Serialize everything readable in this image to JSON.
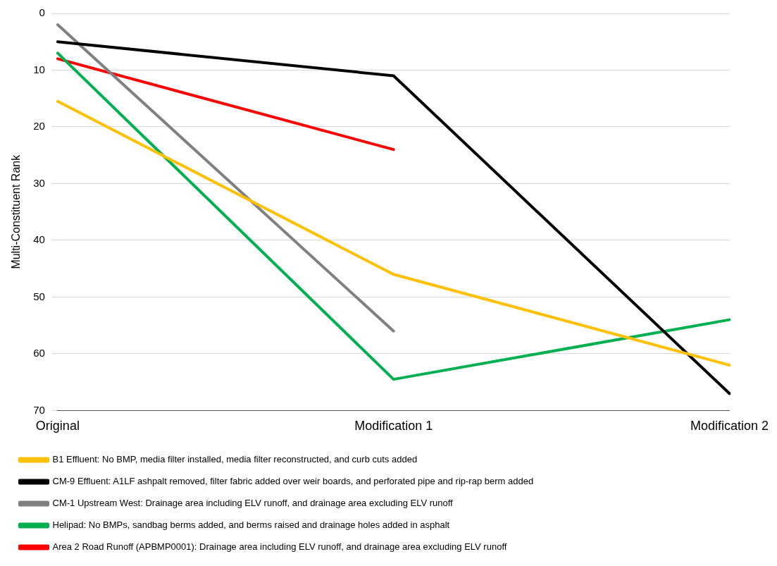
{
  "chart_data": {
    "type": "line",
    "ylabel": "Multi-Constituent Rank",
    "categories": [
      "Original",
      "Modification 1",
      "Modification 2"
    ],
    "ylim": [
      70,
      0
    ],
    "yticks": [
      0,
      10,
      20,
      30,
      40,
      50,
      60,
      70
    ],
    "grid": "y",
    "legend": "bottom",
    "marker": "none",
    "line_style": "solid",
    "series": [
      {
        "name": "B1 Effluent: No BMP, media filter installed, media filter reconstructed, and curb cuts added",
        "color": "#ffc000",
        "values": [
          15.5,
          46,
          62
        ]
      },
      {
        "name": "CM-9 Effluent: A1LF ashpalt removed, filter fabric added over weir boards, and perforated pipe and rip-rap berm added",
        "color": "#000000",
        "values": [
          5,
          11,
          67
        ]
      },
      {
        "name": "CM-1 Upstream West: Drainage area including ELV runoff, and drainage area excluding ELV runoff",
        "color": "#808080",
        "values": [
          2,
          56,
          null
        ]
      },
      {
        "name": "Helipad: No BMPs, sandbag berms added, and berms raised and drainage holes added in asphalt",
        "color": "#00b050",
        "values": [
          7,
          64.5,
          54
        ]
      },
      {
        "name": "Area 2 Road Runoff (APBMP0001): Drainage area including ELV runoff, and drainage area excluding ELV runoff",
        "color": "#ff0000",
        "values": [
          8,
          24,
          null
        ]
      }
    ]
  }
}
